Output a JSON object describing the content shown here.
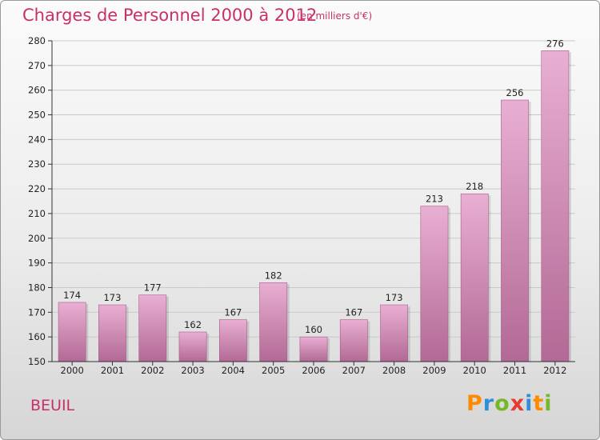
{
  "header": {
    "title": "Charges de Personnel 2000 à 2012",
    "subtitle": "(en milliers d'€)"
  },
  "footer": {
    "commune": "BEUIL",
    "logo_text": "Proxiti"
  },
  "colors": {
    "accent": "#c8306a",
    "bar_top": "#e9afd3",
    "bar_bottom": "#b26995",
    "logo_letters": [
      "#ff8a00",
      "#2f8fd8",
      "#77b82a",
      "#e63b2e",
      "#2f8fd8",
      "#ff8a00",
      "#77b82a"
    ]
  },
  "chart_data": {
    "type": "bar",
    "title": "Charges de Personnel 2000 à 2012",
    "subtitle": "(en milliers d'€)",
    "categories": [
      "2000",
      "2001",
      "2002",
      "2003",
      "2004",
      "2005",
      "2006",
      "2007",
      "2008",
      "2009",
      "2010",
      "2011",
      "2012"
    ],
    "values": [
      174,
      173,
      177,
      162,
      167,
      182,
      160,
      167,
      173,
      213,
      218,
      256,
      276
    ],
    "ylim": [
      150,
      280
    ],
    "yticks": [
      150,
      160,
      170,
      180,
      190,
      200,
      210,
      220,
      230,
      240,
      250,
      260,
      270,
      280
    ],
    "grid": true,
    "legend": "none"
  }
}
